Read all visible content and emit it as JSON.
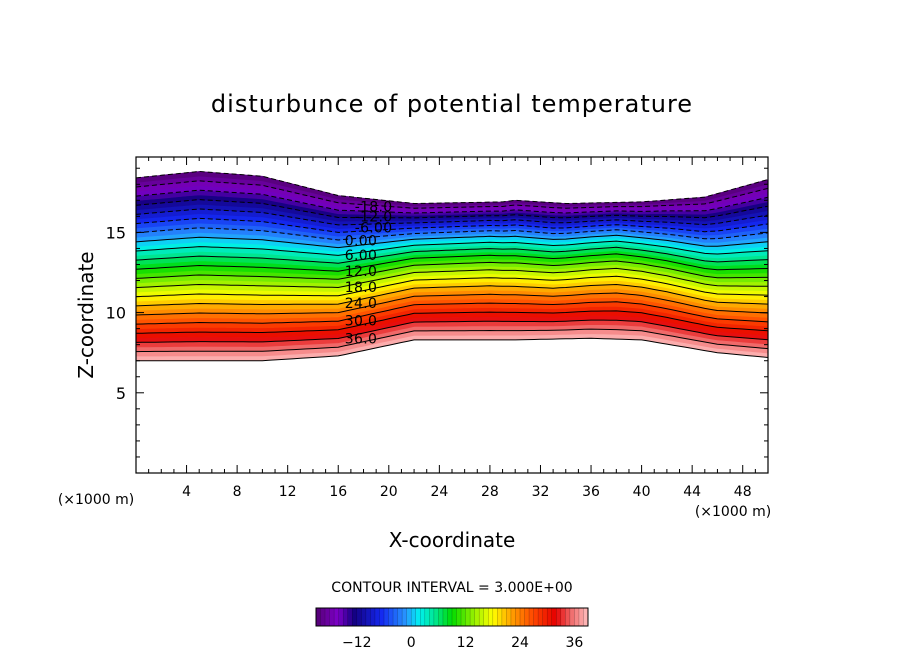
{
  "chart_data": {
    "type": "contour",
    "title": "disturbunce of potential temperature",
    "xlabel": "X-coordinate",
    "ylabel": "Z-coordinate",
    "x_unit": "(×1000 m)",
    "y_unit": "(×1000 m)",
    "xlim": [
      0,
      50
    ],
    "ylim": [
      0,
      19.7
    ],
    "x_ticks": [
      4,
      8,
      12,
      16,
      20,
      24,
      28,
      32,
      36,
      40,
      44,
      48
    ],
    "y_ticks": [
      5,
      10,
      15
    ],
    "contour_interval_label": "CONTOUR INTERVAL = 3.000E+00",
    "contour_levels": [
      -21,
      -18,
      -15,
      -12,
      -9,
      -6,
      -3,
      0,
      3,
      6,
      9,
      12,
      15,
      18,
      21,
      24,
      27,
      30,
      33,
      36,
      39
    ],
    "contour_labels": [
      {
        "text": "-18.0",
        "x": 18.8,
        "z": 16.6
      },
      {
        "text": "-12.0",
        "x": 18.8,
        "z": 16.0
      },
      {
        "text": "-6.00",
        "x": 18.8,
        "z": 15.3
      },
      {
        "text": "0.00",
        "x": 17.8,
        "z": 14.5
      },
      {
        "text": "6.00",
        "x": 17.8,
        "z": 13.6
      },
      {
        "text": "12.0",
        "x": 17.8,
        "z": 12.6
      },
      {
        "text": "18.0",
        "x": 17.8,
        "z": 11.6
      },
      {
        "text": "24.0",
        "x": 17.8,
        "z": 10.6
      },
      {
        "text": "30.0",
        "x": 17.8,
        "z": 9.5
      },
      {
        "text": "36.0",
        "x": 17.8,
        "z": 8.4
      }
    ],
    "colorbar": {
      "min": -21,
      "max": 39,
      "ticks": [
        -12,
        0,
        12,
        24,
        36
      ]
    }
  }
}
